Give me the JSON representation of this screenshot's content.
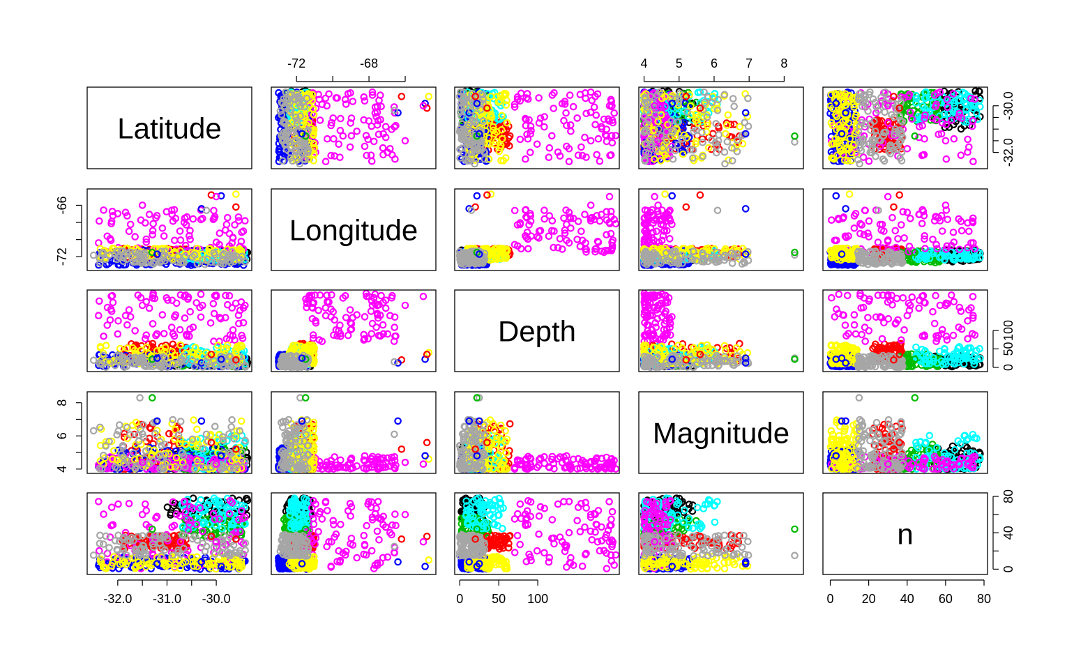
{
  "chart_data": {
    "type": "scatter-matrix",
    "variables": [
      "Latitude",
      "Longitude",
      "Depth",
      "Magnitude",
      "n"
    ],
    "ranges": {
      "Latitude": [
        -32.55,
        -29.35
      ],
      "Longitude": [
        -73.2,
        -64.5
      ],
      "Depth": [
        -2,
        200
      ],
      "Magnitude": [
        3.95,
        8.45
      ],
      "n": [
        -2,
        80
      ]
    },
    "ticks": {
      "Latitude": [
        "-32.0",
        "-31.0",
        "-30.0"
      ],
      "Latitude_minor": [
        -32.0,
        -31.5,
        -31.0,
        -30.5,
        -30.0
      ],
      "Latitude_right": [
        "-32.0",
        "-30.0"
      ],
      "Latitude_right_minor": [
        -32.0,
        -31.5,
        -31.0,
        -30.5,
        -30.0
      ],
      "Longitude": [
        "-72",
        "-68"
      ],
      "Longitude_minor": [
        -72,
        -70,
        -68,
        -66
      ],
      "Longitude_left": [
        "-72",
        "-66"
      ],
      "Longitude_left_minor": [
        -72,
        -70,
        -68,
        -66
      ],
      "Depth": [
        "0",
        "50",
        "100"
      ],
      "Depth_right": [
        "0",
        "50",
        "100"
      ],
      "Magnitude": [
        "4",
        "5",
        "6",
        "7",
        "8"
      ],
      "Magnitude_left": [
        "4",
        "6",
        "8"
      ],
      "Magnitude_left_minor": [
        4,
        5,
        6,
        7,
        8
      ],
      "n": [
        "0",
        "20",
        "40",
        "60",
        "80"
      ],
      "n_right": [
        "0",
        "40",
        "80"
      ],
      "n_right_minor": [
        0,
        20,
        40,
        60,
        80
      ]
    },
    "cluster_colors": [
      "#000000",
      "#ff0000",
      "#00bb00",
      "#0000ff",
      "#00ffff",
      "#ff00ff",
      "#ffff00",
      "#a6a6a6"
    ],
    "clusters": [
      {
        "color": "#000000",
        "lat": [
          -31.0,
          -29.35
        ],
        "lon": [
          -72.6,
          -71.2
        ],
        "depth": [
          2,
          32
        ],
        "mag": [
          4.0,
          5.4
        ],
        "n": [
          54,
          78
        ],
        "count": 70
      },
      {
        "color": "#ff0000",
        "lat": [
          -31.9,
          -30.6
        ],
        "lon": [
          -72.2,
          -71.0
        ],
        "depth": [
          18,
          65
        ],
        "mag": [
          4.0,
          6.9
        ],
        "n": [
          22,
          38
        ],
        "count": 80
      },
      {
        "color": "#00bb00",
        "lat": [
          -30.7,
          -29.4
        ],
        "lon": [
          -72.7,
          -71.3
        ],
        "depth": [
          2,
          38
        ],
        "mag": [
          4.0,
          5.5
        ],
        "n": [
          36,
          58
        ],
        "count": 70
      },
      {
        "color": "#0000ff",
        "lat": [
          -32.4,
          -29.4
        ],
        "lon": [
          -73.0,
          -71.2
        ],
        "depth": [
          2,
          35
        ],
        "mag": [
          4.0,
          5.3
        ],
        "n": [
          0,
          14
        ],
        "count": 130
      },
      {
        "color": "#00ffff",
        "lat": [
          -30.7,
          -29.4
        ],
        "lon": [
          -72.4,
          -71.3
        ],
        "depth": [
          8,
          60
        ],
        "mag": [
          4.0,
          6.1
        ],
        "n": [
          44,
          78
        ],
        "count": 70
      },
      {
        "color": "#ff00ff",
        "lat": [
          -32.4,
          -29.4
        ],
        "lon": [
          -71.5,
          -66.5
        ],
        "depth": [
          70,
          200
        ],
        "mag": [
          4.0,
          4.8
        ],
        "n": [
          0,
          76
        ],
        "count": 90
      },
      {
        "color": "#ffff00",
        "lat": [
          -32.4,
          -29.4
        ],
        "lon": [
          -72.4,
          -71.0
        ],
        "depth": [
          10,
          62
        ],
        "mag": [
          4.0,
          7.0
        ],
        "n": [
          0,
          14
        ],
        "count": 90
      },
      {
        "color": "#a6a6a6",
        "lat": [
          -32.5,
          -29.4
        ],
        "lon": [
          -72.9,
          -71.3
        ],
        "depth": [
          0,
          32
        ],
        "mag": [
          4.0,
          7.0
        ],
        "n": [
          14,
          38
        ],
        "count": 90
      }
    ],
    "outliers": [
      {
        "color": "#a6a6a6",
        "lat": -31.55,
        "lon": -71.8,
        "depth": 25,
        "mag": 8.3,
        "n": 15
      },
      {
        "color": "#00bb00",
        "lat": -31.3,
        "lon": -71.5,
        "depth": 22,
        "mag": 8.3,
        "n": 44
      },
      {
        "color": "#ffff00",
        "lat": -29.6,
        "lon": -64.7,
        "depth": 40,
        "mag": 4.6,
        "n": 10
      },
      {
        "color": "#0000ff",
        "lat": -29.9,
        "lon": -64.9,
        "depth": 22,
        "mag": 4.8,
        "n": 3
      },
      {
        "color": "#ff0000",
        "lat": -30.1,
        "lon": -64.8,
        "depth": 35,
        "mag": 5.6,
        "n": 36
      },
      {
        "color": "#ff0000",
        "lat": -29.6,
        "lon": -66.2,
        "depth": 20,
        "mag": 5.2,
        "n": 33
      },
      {
        "color": "#0000ff",
        "lat": -30.3,
        "lon": -66.4,
        "depth": 12,
        "mag": 6.9,
        "n": 8
      },
      {
        "color": "#a6a6a6",
        "lat": -30.2,
        "lon": -66.6,
        "depth": 15,
        "mag": 6.1,
        "n": 25
      },
      {
        "color": "#0000ff",
        "lat": -31.2,
        "lon": -71.7,
        "depth": 25,
        "mag": 6.9,
        "n": 6
      },
      {
        "color": "#ff00ff",
        "lat": -30.0,
        "lon": -65.0,
        "depth": 192,
        "mag": 4.3,
        "n": 30
      },
      {
        "color": "#ff00ff",
        "lat": -31.5,
        "lon": -66.0,
        "depth": 168,
        "mag": 4.4,
        "n": 60
      }
    ],
    "title": "",
    "xlabel": "",
    "ylabel": ""
  }
}
